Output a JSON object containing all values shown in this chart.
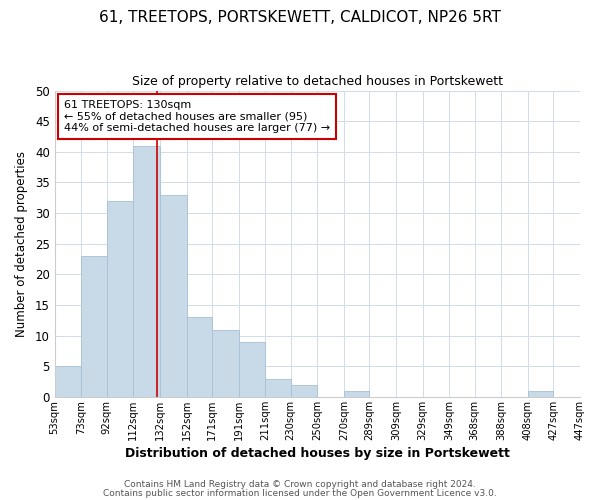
{
  "title": "61, TREETOPS, PORTSKEWETT, CALDICOT, NP26 5RT",
  "subtitle": "Size of property relative to detached houses in Portskewett",
  "xlabel": "Distribution of detached houses by size in Portskewett",
  "ylabel": "Number of detached properties",
  "bar_color": "#c8d9e8",
  "bar_edge_color": "#a8c0d4",
  "vline_x": 130,
  "vline_color": "#cc0000",
  "bin_edges": [
    53,
    73,
    92,
    112,
    132,
    152,
    171,
    191,
    211,
    230,
    250,
    270,
    289,
    309,
    329,
    349,
    368,
    388,
    408,
    427,
    447
  ],
  "bin_labels": [
    "53sqm",
    "73sqm",
    "92sqm",
    "112sqm",
    "132sqm",
    "152sqm",
    "171sqm",
    "191sqm",
    "211sqm",
    "230sqm",
    "250sqm",
    "270sqm",
    "289sqm",
    "309sqm",
    "329sqm",
    "349sqm",
    "368sqm",
    "388sqm",
    "408sqm",
    "427sqm",
    "447sqm"
  ],
  "counts": [
    5,
    23,
    32,
    41,
    33,
    13,
    11,
    9,
    3,
    2,
    0,
    1,
    0,
    0,
    0,
    0,
    0,
    0,
    1,
    0
  ],
  "ylim": [
    0,
    50
  ],
  "yticks": [
    0,
    5,
    10,
    15,
    20,
    25,
    30,
    35,
    40,
    45,
    50
  ],
  "annotation_line1": "61 TREETOPS: 130sqm",
  "annotation_line2": "← 55% of detached houses are smaller (95)",
  "annotation_line3": "44% of semi-detached houses are larger (77) →",
  "annotation_box_color": "white",
  "annotation_box_edge": "#cc0000",
  "footer_line1": "Contains HM Land Registry data © Crown copyright and database right 2024.",
  "footer_line2": "Contains public sector information licensed under the Open Government Licence v3.0.",
  "bg_color": "#ffffff",
  "plot_bg_color": "#ffffff",
  "grid_color": "#d0dce8"
}
